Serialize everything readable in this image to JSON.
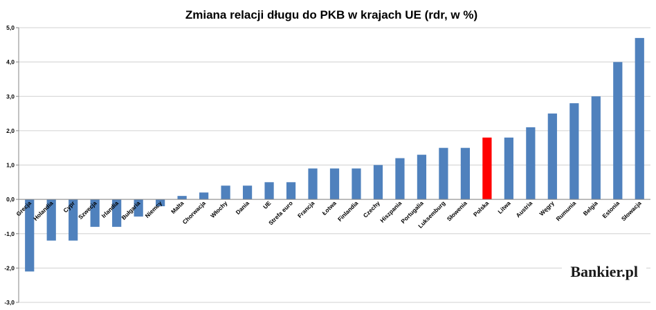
{
  "chart_data": {
    "type": "bar",
    "title": "Zmiana relacji długu do PKB w krajach UE (rdr, w %)",
    "xlabel": "",
    "ylabel": "",
    "ylim": [
      -3,
      5
    ],
    "ytick_step": 1,
    "ytick_labels": [
      "-3,0",
      "-2,0",
      "-1,0",
      "0,0",
      "1,0",
      "2,0",
      "3,0",
      "4,0",
      "5,0"
    ],
    "grid": true,
    "legend": "none",
    "categories": [
      "Grecja",
      "Holandia",
      "Cypr",
      "Szwecja",
      "Irlandia",
      "Bułgaria",
      "Niemcy",
      "Malta",
      "Chorwacja",
      "Włochy",
      "Dania",
      "UE",
      "Strefa euro",
      "Francja",
      "Łotwa",
      "Finlandia",
      "Czechy",
      "Hiszpania",
      "Portugalia",
      "Luksemburg",
      "Słowenia",
      "Polska",
      "Litwa",
      "Austria",
      "Węgry",
      "Rumunia",
      "Belgia",
      "Estonia",
      "Słowacja"
    ],
    "values": [
      -2.1,
      -1.2,
      -1.2,
      -0.8,
      -0.8,
      -0.5,
      -0.2,
      0.1,
      0.2,
      0.4,
      0.4,
      0.5,
      0.5,
      0.9,
      0.9,
      0.9,
      1.0,
      1.2,
      1.3,
      1.5,
      1.5,
      1.8,
      1.8,
      2.1,
      2.5,
      2.8,
      3.0,
      4.0,
      4.7
    ],
    "colors": {
      "bar": "#4f81bd",
      "highlight": "#ff0000",
      "highlight_category": "Polska",
      "grid": "#d0d0d0",
      "axis": "#868686"
    }
  },
  "logo": {
    "text": "Bankier.pl"
  }
}
